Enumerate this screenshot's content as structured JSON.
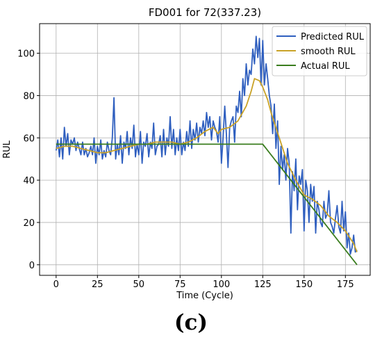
{
  "chart_data": {
    "type": "line",
    "title": "FD001 for 72(337.23)",
    "xlabel": "Time (Cycle)",
    "ylabel": "RUL",
    "xlim": [
      -10,
      190
    ],
    "ylim": [
      -5,
      114
    ],
    "x_ticks": [
      0,
      25,
      50,
      75,
      100,
      125,
      150,
      175
    ],
    "y_ticks": [
      0,
      20,
      40,
      60,
      80,
      100
    ],
    "grid": true,
    "legend_position": "top-right",
    "series": [
      {
        "name": "Predicted RUL",
        "color": "#2f5fbf",
        "x": [
          0,
          1,
          2,
          3,
          4,
          5,
          6,
          7,
          8,
          9,
          10,
          11,
          12,
          13,
          14,
          15,
          16,
          17,
          18,
          19,
          20,
          21,
          22,
          23,
          24,
          25,
          26,
          27,
          28,
          29,
          30,
          31,
          32,
          33,
          34,
          35,
          36,
          37,
          38,
          39,
          40,
          41,
          42,
          43,
          44,
          45,
          46,
          47,
          48,
          49,
          50,
          51,
          52,
          53,
          54,
          55,
          56,
          57,
          58,
          59,
          60,
          61,
          62,
          63,
          64,
          65,
          66,
          67,
          68,
          69,
          70,
          71,
          72,
          73,
          74,
          75,
          76,
          77,
          78,
          79,
          80,
          81,
          82,
          83,
          84,
          85,
          86,
          87,
          88,
          89,
          90,
          91,
          92,
          93,
          94,
          95,
          96,
          97,
          98,
          99,
          100,
          101,
          102,
          103,
          104,
          105,
          106,
          107,
          108,
          109,
          110,
          111,
          112,
          113,
          114,
          115,
          116,
          117,
          118,
          119,
          120,
          121,
          122,
          123,
          124,
          125,
          126,
          127,
          128,
          129,
          130,
          131,
          132,
          133,
          134,
          135,
          136,
          137,
          138,
          139,
          140,
          141,
          142,
          143,
          144,
          145,
          146,
          147,
          148,
          149,
          150,
          151,
          152,
          153,
          154,
          155,
          156,
          157,
          158,
          159,
          160,
          161,
          162,
          163,
          164,
          165,
          166,
          167,
          168,
          169,
          170,
          171,
          172,
          173,
          174,
          175,
          176,
          177,
          178,
          179,
          180,
          181,
          182
        ],
        "values": [
          54,
          59,
          51,
          60,
          50,
          65,
          56,
          62,
          52,
          59,
          57,
          60,
          54,
          58,
          55,
          52,
          58,
          52,
          55,
          51,
          53,
          56,
          52,
          60,
          48,
          56,
          52,
          59,
          50,
          54,
          51,
          58,
          54,
          52,
          60,
          79,
          50,
          57,
          52,
          61,
          48,
          58,
          55,
          63,
          52,
          60,
          55,
          66,
          51,
          57,
          52,
          63,
          48,
          58,
          56,
          62,
          51,
          58,
          55,
          67,
          52,
          56,
          57,
          61,
          51,
          64,
          52,
          60,
          56,
          70,
          55,
          64,
          52,
          60,
          54,
          64,
          52,
          58,
          54,
          63,
          56,
          68,
          55,
          64,
          59,
          67,
          58,
          65,
          62,
          68,
          61,
          72,
          65,
          70,
          59,
          68,
          65,
          63,
          58,
          70,
          48,
          60,
          75,
          62,
          46,
          65,
          68,
          70,
          58,
          75,
          72,
          82,
          70,
          88,
          80,
          95,
          85,
          92,
          90,
          102,
          95,
          108,
          98,
          107,
          85,
          106,
          85,
          95,
          88,
          80,
          75,
          62,
          76,
          55,
          68,
          38,
          56,
          45,
          52,
          40,
          55,
          48,
          15,
          44,
          35,
          50,
          26,
          42,
          38,
          45,
          16,
          40,
          35,
          20,
          38,
          30,
          37,
          15,
          30,
          26,
          20,
          18,
          30,
          22,
          24,
          35,
          20,
          18,
          15,
          22,
          28,
          18,
          15,
          30,
          16,
          25,
          8,
          15,
          5,
          8,
          14,
          6,
          7
        ]
      },
      {
        "name": "smooth RUL",
        "color": "#c9a227",
        "x": [
          0,
          5,
          10,
          15,
          20,
          25,
          30,
          35,
          40,
          45,
          50,
          55,
          60,
          65,
          70,
          75,
          80,
          85,
          90,
          95,
          98,
          100,
          105,
          110,
          115,
          118,
          120,
          123,
          125,
          128,
          130,
          135,
          140,
          145,
          150,
          155,
          160,
          165,
          170,
          175,
          180,
          182
        ],
        "values": [
          55,
          56,
          56,
          55,
          54,
          53,
          53,
          54,
          55,
          56,
          57,
          57,
          58,
          58,
          58,
          57,
          58,
          60,
          63,
          65,
          62,
          64,
          65,
          68,
          75,
          82,
          88,
          87,
          84,
          78,
          72,
          60,
          48,
          40,
          33,
          31,
          28,
          23,
          20,
          16,
          10,
          6
        ]
      },
      {
        "name": "Actual RUL",
        "color": "#3a7d1e",
        "x": [
          0,
          125,
          182
        ],
        "values": [
          57,
          57,
          0
        ]
      }
    ]
  },
  "figure": {
    "panel_label": "(c)"
  }
}
